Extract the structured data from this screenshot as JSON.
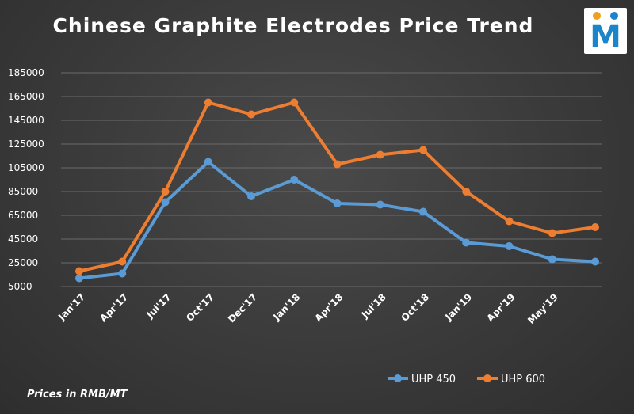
{
  "chart_data": {
    "type": "line",
    "title": "Chinese Graphite Electrodes Price Trend",
    "categories": [
      "Jan'17",
      "Apr'17",
      "Jul'17",
      "Oct'17",
      "Dec'17",
      "Jan'18",
      "Apr'18",
      "Jul'18",
      "Oct'18",
      "Jan'19",
      "Apr'19",
      "May'19",
      ""
    ],
    "series": [
      {
        "name": "UHP 450",
        "color": "#5b9bd5",
        "values": [
          12000,
          16000,
          76000,
          110000,
          81000,
          95000,
          75000,
          74000,
          68000,
          42000,
          39000,
          28000,
          26000
        ]
      },
      {
        "name": "UHP 600",
        "color": "#ed7d31",
        "values": [
          18000,
          26000,
          85000,
          160000,
          150000,
          160000,
          108000,
          116000,
          120000,
          85000,
          60000,
          50000,
          55000
        ]
      }
    ],
    "y_ticks": [
      "185000",
      "165000",
      "145000",
      "125000",
      "105000",
      "85000",
      "65000",
      "45000",
      "25000",
      "5000"
    ],
    "ylim": [
      5000,
      185000
    ],
    "grid": true,
    "legend_position": "bottom-right",
    "note": "Prices in RMB/MT"
  },
  "logo": {
    "letter": "M",
    "letter_color": "#1a86c9",
    "dot_left_color": "#f0a020",
    "dot_right_color": "#1a86c9"
  }
}
